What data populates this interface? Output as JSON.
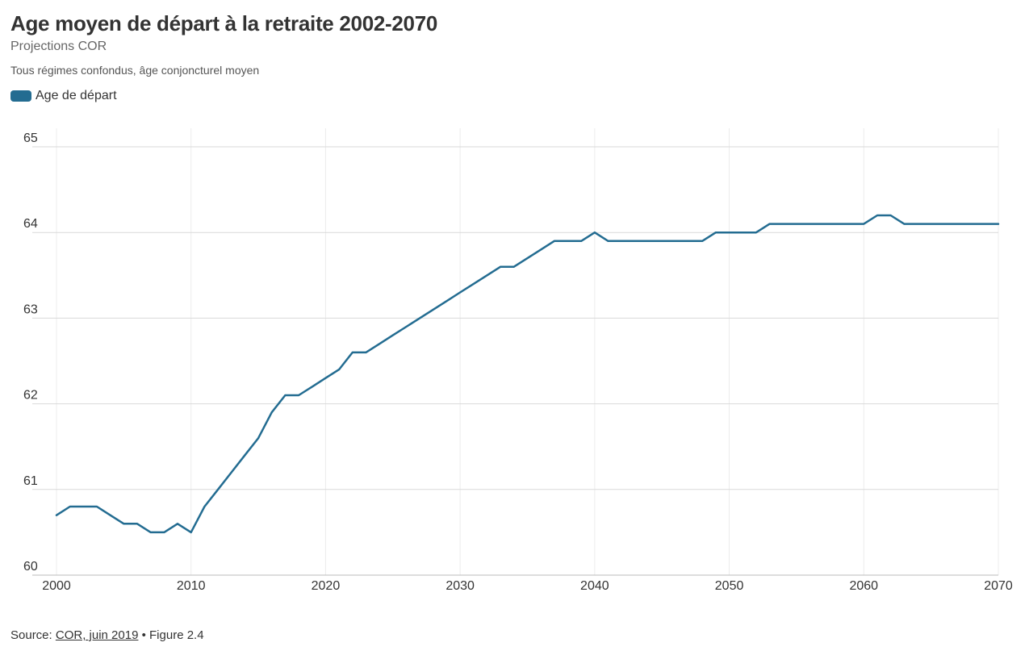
{
  "title": "Age moyen de départ à la retraite 2002-2070",
  "subtitle": "Projections COR",
  "description": "Tous régimes confondus, âge conjoncturel moyen",
  "colors": {
    "series": "#236C91",
    "grid": "#d9d9d9",
    "vertical_grid": "#ececec"
  },
  "footer": {
    "source_label": "Source: ",
    "source_link": "COR, juin 2019",
    "suffix": " • Figure 2.4"
  },
  "chart_data": {
    "type": "line",
    "title": "Age moyen de départ à la retraite 2002-2070",
    "subtitle": "Projections COR",
    "xlabel": "",
    "ylabel": "",
    "xlim": [
      2000,
      2070
    ],
    "ylim": [
      60,
      65
    ],
    "x_ticks": [
      "2000",
      "2010",
      "2020",
      "2030",
      "2040",
      "2050",
      "2060",
      "2070"
    ],
    "y_ticks": [
      "60",
      "61",
      "62",
      "63",
      "64",
      "65"
    ],
    "grid": true,
    "legend_placement": "top-left",
    "series": [
      {
        "name": "Age de départ",
        "color": "#236C91",
        "x": [
          2000,
          2001,
          2002,
          2003,
          2004,
          2005,
          2006,
          2007,
          2008,
          2009,
          2010,
          2011,
          2012,
          2013,
          2014,
          2015,
          2016,
          2017,
          2018,
          2019,
          2020,
          2021,
          2022,
          2023,
          2024,
          2025,
          2026,
          2027,
          2028,
          2029,
          2030,
          2031,
          2032,
          2033,
          2034,
          2035,
          2036,
          2037,
          2038,
          2039,
          2040,
          2041,
          2042,
          2043,
          2044,
          2045,
          2046,
          2047,
          2048,
          2049,
          2050,
          2051,
          2052,
          2053,
          2054,
          2055,
          2056,
          2057,
          2058,
          2059,
          2060,
          2061,
          2062,
          2063,
          2064,
          2065,
          2066,
          2067,
          2068,
          2069,
          2070
        ],
        "values": [
          60.7,
          60.8,
          60.8,
          60.8,
          60.7,
          60.6,
          60.6,
          60.5,
          60.5,
          60.6,
          60.5,
          60.8,
          61.0,
          61.2,
          61.4,
          61.6,
          61.9,
          62.1,
          62.1,
          62.2,
          62.3,
          62.4,
          62.6,
          62.6,
          62.7,
          62.8,
          62.9,
          63.0,
          63.1,
          63.2,
          63.3,
          63.4,
          63.5,
          63.6,
          63.6,
          63.7,
          63.8,
          63.9,
          63.9,
          63.9,
          64.0,
          63.9,
          63.9,
          63.9,
          63.9,
          63.9,
          63.9,
          63.9,
          63.9,
          64.0,
          64.0,
          64.0,
          64.0,
          64.1,
          64.1,
          64.1,
          64.1,
          64.1,
          64.1,
          64.1,
          64.1,
          64.2,
          64.2,
          64.1,
          64.1,
          64.1,
          64.1,
          64.1,
          64.1,
          64.1,
          64.1
        ]
      }
    ]
  }
}
